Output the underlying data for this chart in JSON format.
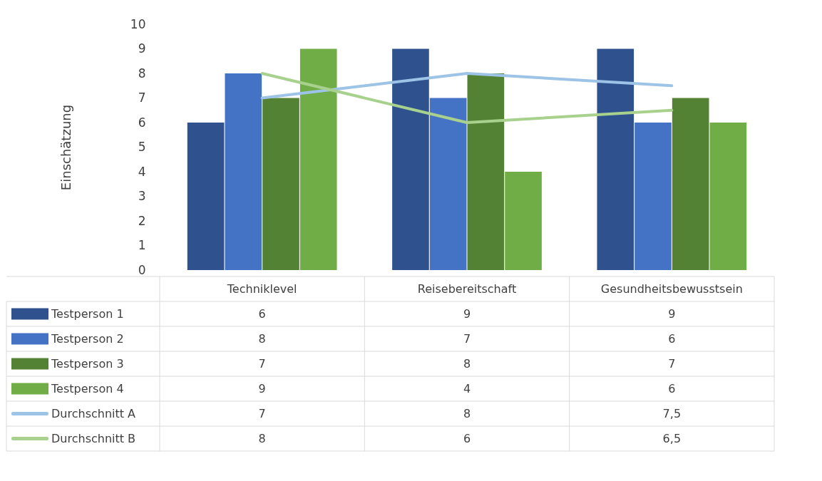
{
  "chart_data": {
    "type": "bar",
    "ylabel": "Einschätzung",
    "categories": [
      "Techniklevel",
      "Reisebereitschaft",
      "Gesundheitsbewusstsein"
    ],
    "ylim": [
      0,
      10
    ],
    "yticks": [
      0,
      1,
      2,
      3,
      4,
      5,
      6,
      7,
      8,
      9,
      10
    ],
    "grid": false,
    "legend": "bottom",
    "marker": "none",
    "line_style": "solid",
    "series": [
      {
        "name": "Testperson 1",
        "color": "#2f528f",
        "values": [
          6,
          9,
          9
        ],
        "value_labels": [
          "6",
          "9",
          "9"
        ]
      },
      {
        "name": "Testperson 2",
        "color": "#4472c4",
        "values": [
          8,
          7,
          6
        ],
        "value_labels": [
          "8",
          "7",
          "6"
        ]
      },
      {
        "name": "Testperson 3",
        "color": "#548235",
        "values": [
          7,
          8,
          7
        ],
        "value_labels": [
          "7",
          "8",
          "7"
        ]
      },
      {
        "name": "Testperson 4",
        "color": "#70ad47",
        "values": [
          9,
          4,
          6
        ],
        "value_labels": [
          "9",
          "4",
          "6"
        ]
      },
      {
        "name": "Durchschnitt A",
        "type": "line",
        "color": "#9dc3e6",
        "values": [
          7,
          8,
          7.5
        ],
        "value_labels": [
          "7",
          "8",
          "7,5"
        ]
      },
      {
        "name": "Durchschnitt B",
        "type": "line",
        "color": "#a9d18e",
        "values": [
          8,
          6,
          6.5
        ],
        "value_labels": [
          "8",
          "6",
          "6,5"
        ]
      }
    ]
  }
}
